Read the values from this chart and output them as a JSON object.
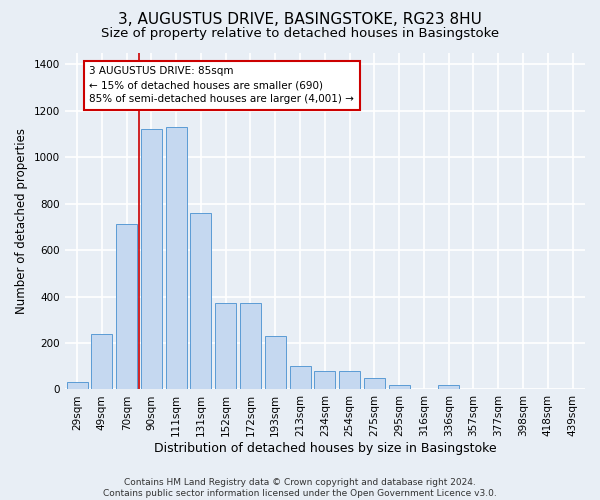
{
  "title": "3, AUGUSTUS DRIVE, BASINGSTOKE, RG23 8HU",
  "subtitle": "Size of property relative to detached houses in Basingstoke",
  "xlabel": "Distribution of detached houses by size in Basingstoke",
  "ylabel": "Number of detached properties",
  "footer_line1": "Contains HM Land Registry data © Crown copyright and database right 2024.",
  "footer_line2": "Contains public sector information licensed under the Open Government Licence v3.0.",
  "categories": [
    "29sqm",
    "49sqm",
    "70sqm",
    "90sqm",
    "111sqm",
    "131sqm",
    "152sqm",
    "172sqm",
    "193sqm",
    "213sqm",
    "234sqm",
    "254sqm",
    "275sqm",
    "295sqm",
    "316sqm",
    "336sqm",
    "357sqm",
    "377sqm",
    "398sqm",
    "418sqm",
    "439sqm"
  ],
  "bar_values": [
    30,
    240,
    710,
    1120,
    1130,
    760,
    370,
    370,
    230,
    100,
    80,
    80,
    50,
    20,
    0,
    20,
    0,
    0,
    0,
    0,
    0
  ],
  "bar_color": "#c5d8f0",
  "bar_edge_color": "#5b9bd5",
  "vline_position": 2.5,
  "vline_color": "#cc0000",
  "ylim": [
    0,
    1450
  ],
  "yticks": [
    0,
    200,
    400,
    600,
    800,
    1000,
    1200,
    1400
  ],
  "annotation_text": "3 AUGUSTUS DRIVE: 85sqm\n← 15% of detached houses are smaller (690)\n85% of semi-detached houses are larger (4,001) →",
  "annotation_box_color": "#ffffff",
  "annotation_box_edge_color": "#cc0000",
  "bg_color": "#e8eef5",
  "plot_bg_color": "#e8eef5",
  "grid_color": "#ffffff",
  "title_fontsize": 11,
  "subtitle_fontsize": 9.5,
  "tick_fontsize": 7.5,
  "ylabel_fontsize": 8.5,
  "xlabel_fontsize": 9,
  "annotation_fontsize": 7.5,
  "footer_fontsize": 6.5
}
